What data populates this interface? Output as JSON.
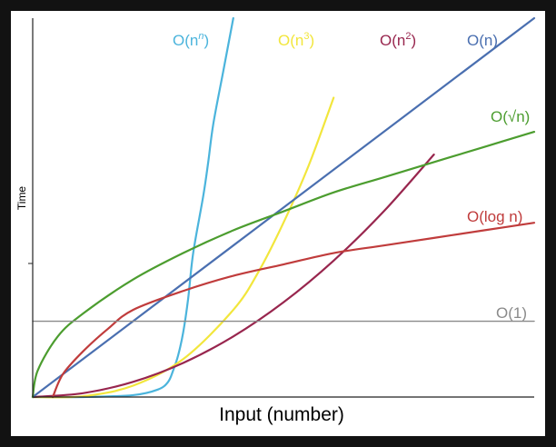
{
  "chart_data": {
    "type": "line",
    "title": "",
    "xlabel": "Input (number)",
    "ylabel": "Time",
    "xlim": [
      0,
      1
    ],
    "ylim": [
      0,
      1
    ],
    "grid": false,
    "series": [
      {
        "name": "O(n^n)",
        "label_base": "O(n",
        "label_sup": "n",
        "label_end": ")",
        "color": "#4bb4dc",
        "x": [
          0,
          0.1,
          0.2,
          0.25,
          0.27,
          0.28,
          0.29,
          0.3,
          0.31,
          0.32,
          0.34,
          0.35,
          0.36,
          0.38,
          0.4
        ],
        "y": [
          0,
          0,
          0.005,
          0.02,
          0.04,
          0.07,
          0.11,
          0.17,
          0.26,
          0.38,
          0.53,
          0.62,
          0.72,
          0.86,
          1.0
        ]
      },
      {
        "name": "O(n^3)",
        "label_base": "O(n",
        "label_sup": "3",
        "label_end": ")",
        "color": "#f2e63c",
        "x": [
          0,
          0.1,
          0.2,
          0.3,
          0.4,
          0.45,
          0.5,
          0.55,
          0.6
        ],
        "y": [
          0,
          0.002,
          0.03,
          0.1,
          0.23,
          0.33,
          0.46,
          0.61,
          0.79
        ]
      },
      {
        "name": "O(n^2)",
        "label_base": "O(n",
        "label_sup": "2",
        "label_end": ")",
        "color": "#98264e",
        "x": [
          0,
          0.1,
          0.2,
          0.3,
          0.4,
          0.5,
          0.6,
          0.7,
          0.8
        ],
        "y": [
          0,
          0.01,
          0.04,
          0.09,
          0.16,
          0.25,
          0.36,
          0.49,
          0.64
        ]
      },
      {
        "name": "O(n)",
        "label_base": "O(n)",
        "label_sup": "",
        "label_end": "",
        "color": "#4a6fb0",
        "x": [
          0,
          1.0
        ],
        "y": [
          0,
          1.0
        ]
      },
      {
        "name": "O(√n)",
        "label_base": "O(√n)",
        "label_sup": "",
        "label_end": "",
        "color": "#4c9d2f",
        "x": [
          0,
          0.01,
          0.05,
          0.1,
          0.2,
          0.3,
          0.4,
          0.5,
          0.6,
          0.7,
          0.8,
          0.9,
          1.0
        ],
        "y": [
          0,
          0.07,
          0.16,
          0.22,
          0.31,
          0.38,
          0.44,
          0.49,
          0.54,
          0.58,
          0.62,
          0.66,
          0.7
        ]
      },
      {
        "name": "O(log n)",
        "label_base": "O(log n)",
        "label_sup": "",
        "label_end": "",
        "color": "#c03c3c",
        "x": [
          0.04,
          0.06,
          0.1,
          0.15,
          0.2,
          0.3,
          0.4,
          0.5,
          0.6,
          0.7,
          0.8,
          0.9,
          1.0
        ],
        "y": [
          0,
          0.06,
          0.12,
          0.18,
          0.23,
          0.28,
          0.32,
          0.35,
          0.38,
          0.4,
          0.42,
          0.44,
          0.46
        ]
      },
      {
        "name": "O(1)",
        "label_base": "O(1)",
        "label_sup": "",
        "label_end": "",
        "color": "#8a8a8a",
        "x": [
          0,
          1.0
        ],
        "y": [
          0.2,
          0.2
        ]
      }
    ]
  }
}
